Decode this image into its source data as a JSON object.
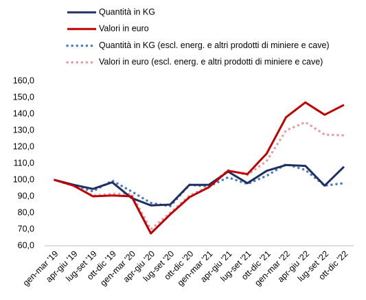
{
  "chart_data": {
    "type": "line",
    "categories": [
      "gen-mar '19",
      "apr-giu '19",
      "lug-set '19",
      "ott-dic '19",
      "gen-mar '20",
      "apr-giu '20",
      "lug-set '20",
      "ott-dic '20",
      "gen-mar '21",
      "apr-giu '21",
      "lug-set '21",
      "ott-dic '21",
      "gen-mar '22",
      "apr-giu '22",
      "lug-set '22",
      "ott-dic '22"
    ],
    "series": [
      {
        "name": "Quantità in KG",
        "color": "#1f2f5f",
        "style": "solid",
        "values": [
          100,
          97,
          94.5,
          98.5,
          89,
          84.5,
          85,
          97,
          97,
          105,
          98,
          105.5,
          109,
          108.5,
          96.5,
          108
        ]
      },
      {
        "name": "Valori in euro",
        "color": "#c00000",
        "style": "solid",
        "values": [
          100,
          96.5,
          90,
          90.5,
          90,
          67.5,
          79,
          89.5,
          95.5,
          105.5,
          103.5,
          116,
          138,
          147,
          139.5,
          145.5
        ]
      },
      {
        "name": "Quantità in KG (escl. energ. e altri prodotti di miniere e cave)",
        "color": "#4a7cc4",
        "style": "dotted",
        "values": [
          100,
          96.5,
          93,
          99.5,
          93,
          86,
          84,
          97,
          96,
          101.5,
          97.5,
          102.5,
          109.5,
          106,
          96.5,
          98
        ]
      },
      {
        "name": "Valori in euro (escl. energ. e altri prodotti di miniere e cave)",
        "color": "#e0a0a8",
        "style": "dotted",
        "values": [
          100,
          96.5,
          90.5,
          91.5,
          91.5,
          70,
          80,
          90.5,
          96,
          106,
          103,
          111.5,
          130,
          135,
          127.5,
          127
        ]
      }
    ],
    "ylim": [
      60,
      160
    ],
    "yticks": [
      {
        "value": 60,
        "label": "60,0"
      },
      {
        "value": 70,
        "label": "70,0"
      },
      {
        "value": 80,
        "label": "80,0"
      },
      {
        "value": 90,
        "label": "90,0"
      },
      {
        "value": 100,
        "label": "100,0"
      },
      {
        "value": 110,
        "label": "110,0"
      },
      {
        "value": 120,
        "label": "120,0"
      },
      {
        "value": 130,
        "label": "130,0"
      },
      {
        "value": 140,
        "label": "140,0"
      },
      {
        "value": 150,
        "label": "150,0"
      },
      {
        "value": 160,
        "label": "160,0"
      }
    ],
    "grid": false,
    "legend": "top"
  }
}
